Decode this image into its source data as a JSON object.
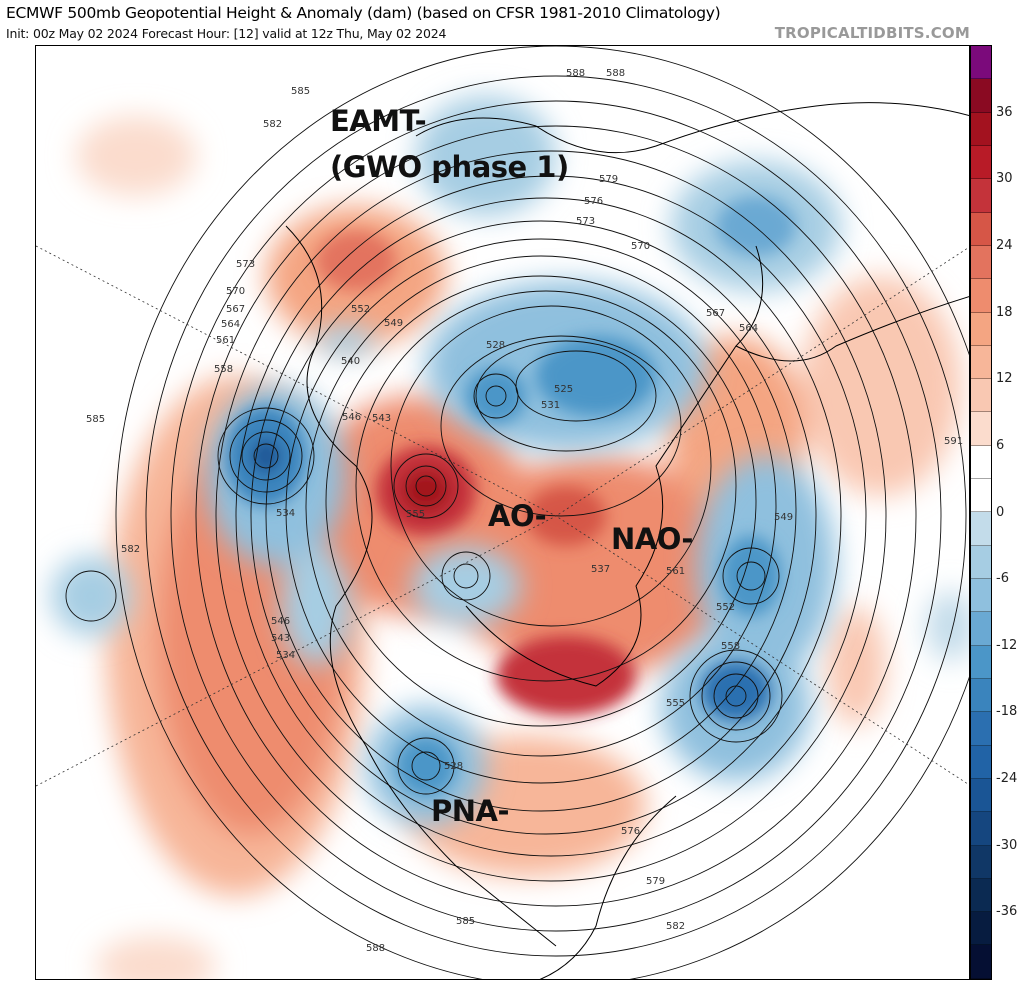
{
  "header": {
    "title": "ECMWF 500mb Geopotential Height & Anomaly (dam) (based on CFSR 1981-2010 Climatology)",
    "subtitle": "Init: 00z May 02 2024   Forecast Hour: [12]   valid at 12z Thu, May 02 2024",
    "brand": "TROPICALTIDBITS.COM"
  },
  "annotations": [
    "EAMT-",
    "(GWO phase 1)",
    "AO-",
    "NAO-",
    "PNA-"
  ],
  "contour_labels": [
    "588",
    "585",
    "582",
    "576",
    "573",
    "570",
    "567",
    "564",
    "561",
    "558",
    "555",
    "552",
    "549",
    "546",
    "543",
    "540",
    "534",
    "528",
    "525",
    "531",
    "537",
    "591",
    "579",
    "588",
    "585",
    "582",
    "573",
    "570",
    "567",
    "564",
    "561",
    "558",
    "555",
    "552",
    "549",
    "546",
    "543",
    "534",
    "528",
    "576",
    "579",
    "582",
    "585",
    "588"
  ],
  "colorbar": {
    "labels": [
      "36",
      "30",
      "24",
      "18",
      "12",
      "6",
      "0",
      "-6",
      "-12",
      "-18",
      "-24",
      "-30",
      "-36"
    ],
    "colors": [
      "#7b0a7b",
      "#8a0a22",
      "#a3121f",
      "#b81b27",
      "#c4333a",
      "#d65647",
      "#e3735e",
      "#ee8c6e",
      "#f4a582",
      "#f7b699",
      "#f9c8b2",
      "#fbdccd",
      "#ffffff",
      "#ffffff",
      "#c3dcea",
      "#a6cde3",
      "#8fc0de",
      "#6aa9d3",
      "#4b96c8",
      "#3a84bd",
      "#2b6fb0",
      "#2163a6",
      "#1a5595",
      "#15467f",
      "#103766",
      "#0b2a52",
      "#071c40",
      "#050f33"
    ]
  }
}
